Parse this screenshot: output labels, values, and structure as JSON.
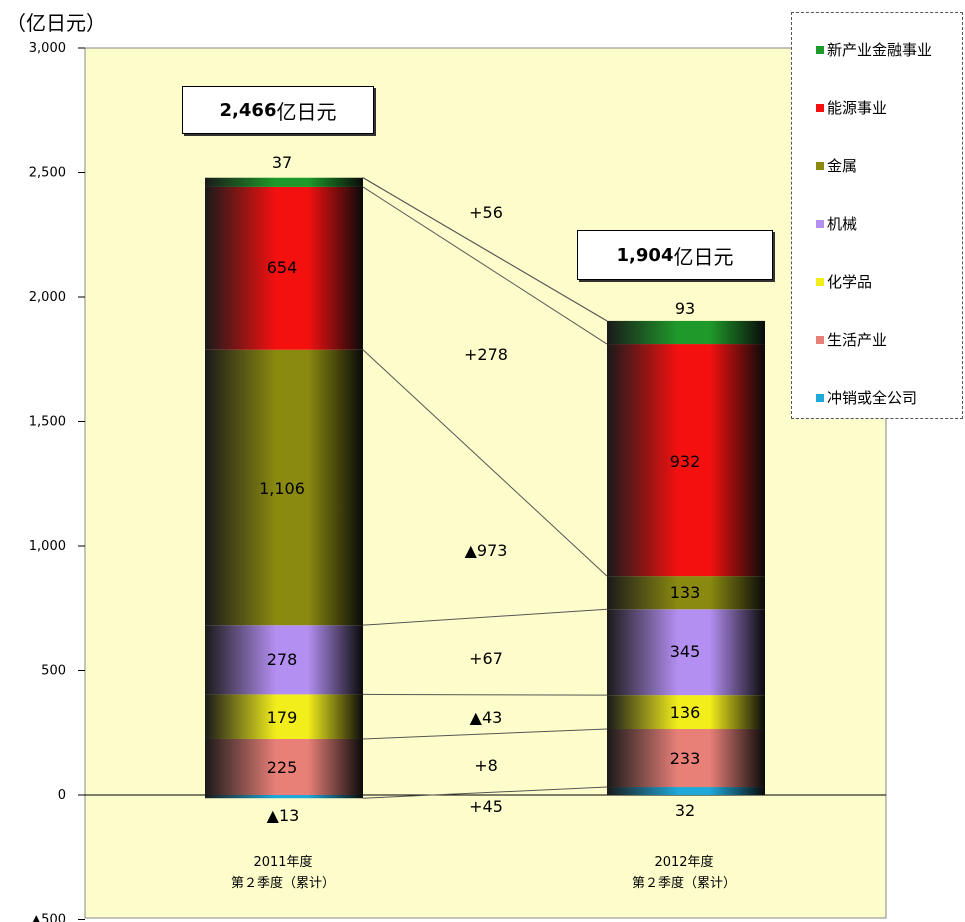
{
  "unit_label": "（亿日元）",
  "chart_data": {
    "type": "bar",
    "stacked": true,
    "ylim": [
      -500,
      3000
    ],
    "ytick_labels": [
      "▲500",
      "0",
      "500",
      "1,000",
      "1,500",
      "2,000",
      "2,500",
      "3,000"
    ],
    "yticks": [
      -500,
      0,
      500,
      1000,
      1500,
      2000,
      2500,
      3000
    ],
    "categories": [
      {
        "line1": "2011年度",
        "line2": "第２季度（累计）"
      },
      {
        "line1": "2012年度",
        "line2": "第２季度（累计）"
      }
    ],
    "totals": [
      {
        "num": "2,466",
        "unit": "亿日元"
      },
      {
        "num": "1,904",
        "unit": "亿日元"
      }
    ],
    "series": [
      {
        "name": "冲销或全公司",
        "color": "#1fa8d8",
        "values": [
          -13,
          32
        ],
        "labels": [
          "▲13",
          "32"
        ]
      },
      {
        "name": "生活产业",
        "color": "#e88078",
        "values": [
          225,
          233
        ],
        "labels": [
          "225",
          "233"
        ]
      },
      {
        "name": "化学品",
        "color": "#f2ee1c",
        "values": [
          179,
          136
        ],
        "labels": [
          "179",
          "136"
        ]
      },
      {
        "name": "机械",
        "color": "#b48ff2",
        "values": [
          278,
          345
        ],
        "labels": [
          "278",
          "345"
        ]
      },
      {
        "name": "金属",
        "color": "#8a8a10",
        "values": [
          1106,
          133
        ],
        "labels": [
          "1,106",
          "133"
        ]
      },
      {
        "name": "能源事业",
        "color": "#f51010",
        "values": [
          654,
          932
        ],
        "labels": [
          "654",
          "932"
        ]
      },
      {
        "name": "新产业金融事业",
        "color": "#1f9a2a",
        "values": [
          37,
          93
        ],
        "labels": [
          "37",
          "93"
        ]
      }
    ],
    "legend_order": [
      "新产业金融事业",
      "能源事业",
      "金属",
      "机械",
      "化学品",
      "生活产业",
      "冲销或全公司"
    ],
    "deltas": [
      "+45",
      "+8",
      "▲43",
      "+67",
      "▲973",
      "+278",
      "+56"
    ],
    "grid": false,
    "legend_position": "top-right"
  }
}
